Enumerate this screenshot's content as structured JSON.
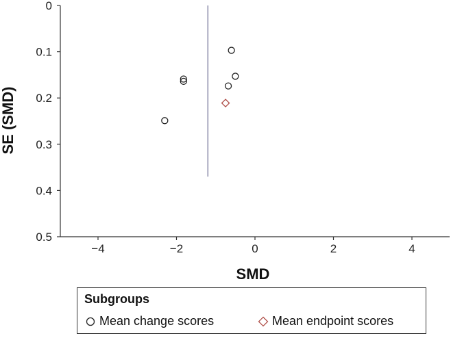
{
  "chart_data": {
    "type": "scatter",
    "title": "",
    "xlabel": "SMD",
    "ylabel": "SE (SMD)",
    "xlim": [
      -5,
      5
    ],
    "ylim": [
      0,
      0.5
    ],
    "y_inverted": true,
    "x_ticks": [
      -4,
      -2,
      0,
      2,
      4
    ],
    "x_tick_labels": [
      "−4",
      "−2",
      "0",
      "2",
      "4"
    ],
    "y_ticks": [
      0,
      0.1,
      0.2,
      0.3,
      0.4,
      0.5
    ],
    "y_tick_labels": [
      "0",
      "0.1",
      "0.2",
      "0.3",
      "0.4",
      "0.5"
    ],
    "reference_line": {
      "x": -1.2,
      "y_range": [
        0,
        0.37
      ],
      "color": "#8a8aa8"
    },
    "grid": false,
    "legend": {
      "title": "Subgroups",
      "placement": "bottom",
      "items": [
        "Mean change scores",
        "Mean endpoint scores"
      ]
    },
    "series": [
      {
        "name": "Mean change scores",
        "marker": "circle",
        "color": "#222222",
        "points": [
          {
            "x": -0.6,
            "y": 0.097
          },
          {
            "x": -0.5,
            "y": 0.153
          },
          {
            "x": -0.68,
            "y": 0.174
          },
          {
            "x": -1.82,
            "y": 0.159
          },
          {
            "x": -1.82,
            "y": 0.164
          },
          {
            "x": -2.3,
            "y": 0.249
          }
        ]
      },
      {
        "name": "Mean endpoint scores",
        "marker": "diamond",
        "color": "#b0504a",
        "points": [
          {
            "x": -0.75,
            "y": 0.211
          }
        ]
      }
    ]
  }
}
